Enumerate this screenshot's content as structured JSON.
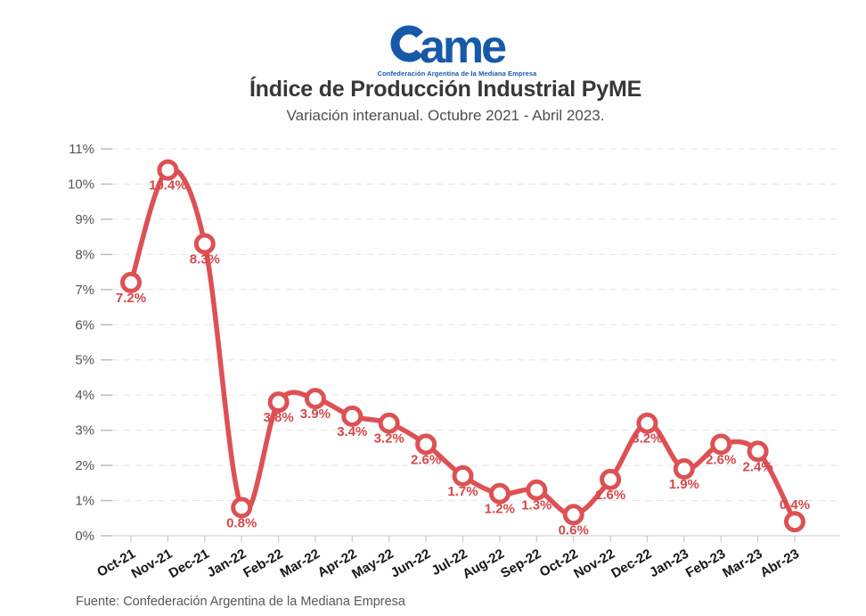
{
  "logo": {
    "brand_c": "C",
    "brand_rest": "ame",
    "tagline": "Confederación Argentina de la Mediana Empresa",
    "color": "#1659a9"
  },
  "header": {
    "title": "Índice de Producción Industrial PyME",
    "subtitle": "Variación interanual. Octubre 2021 - Abril 2023."
  },
  "chart_data": {
    "type": "line",
    "title": "Índice de Producción Industrial PyME",
    "subtitle": "Variación interanual. Octubre 2021 - Abril 2023.",
    "categories": [
      "Oct-21",
      "Nov-21",
      "Dec-21",
      "Jan-22",
      "Feb-22",
      "Mar-22",
      "Apr-22",
      "May-22",
      "Jun-22",
      "Jul-22",
      "Aug-22",
      "Sep-22",
      "Oct-22",
      "Nov-22",
      "Dec-22",
      "Jan-23",
      "Feb-23",
      "Mar-23",
      "Abr-23"
    ],
    "values": [
      7.2,
      10.4,
      8.3,
      0.8,
      3.8,
      3.9,
      3.4,
      3.2,
      2.6,
      1.7,
      1.2,
      1.3,
      0.6,
      1.6,
      3.2,
      1.9,
      2.6,
      2.4,
      0.4
    ],
    "point_labels": [
      "7.2%",
      "10.4%",
      "8.3%",
      "0.8%",
      "3.8%",
      "3.9%",
      "3.4%",
      "3.2%",
      "2.6%",
      "1.7%",
      "1.2%",
      "1.3%",
      "0.6%",
      "1.6%",
      "3.2%",
      "1.9%",
      "2.6%",
      "2.4%",
      "0.4%"
    ],
    "yticks": [
      "0%",
      "1%",
      "2%",
      "3%",
      "4%",
      "5%",
      "6%",
      "7%",
      "8%",
      "9%",
      "10%",
      "11%"
    ],
    "ylim": [
      0,
      11
    ],
    "xlabel": "",
    "ylabel": "",
    "grid": "dashed-horizontal",
    "legend": "none",
    "line_color": "#dd5154",
    "label_color": "#d6484b",
    "marker_fill": "#ffffff",
    "last_label_above": true
  },
  "footer": {
    "source": "Fuente: Confederación Argentina de la Mediana Empresa"
  }
}
